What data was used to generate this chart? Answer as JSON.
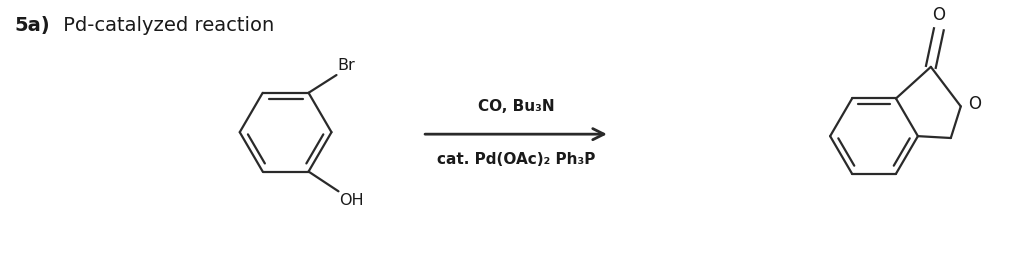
{
  "title_bold": "5a)",
  "title_normal": " Pd-catalyzed reaction",
  "reagent_line1": "CO, Bu₃N",
  "reagent_line2": "cat. Pd(OAc)₂ Ph₃P",
  "bg_color": "#ffffff",
  "line_color": "#2a2a2a",
  "text_color": "#1a1a1a",
  "fig_width": 10.26,
  "fig_height": 2.64,
  "dpi": 100
}
